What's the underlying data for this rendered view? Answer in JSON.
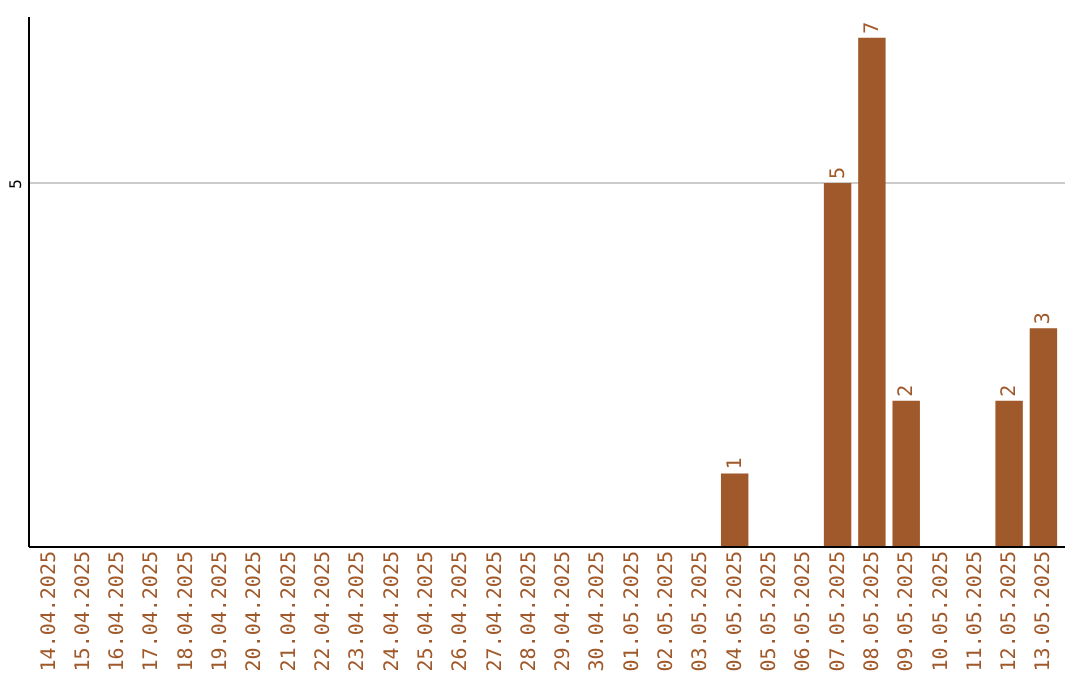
{
  "chart_data": {
    "type": "bar",
    "categories": [
      "14.04.2025",
      "15.04.2025",
      "16.04.2025",
      "17.04.2025",
      "18.04.2025",
      "19.04.2025",
      "20.04.2025",
      "21.04.2025",
      "22.04.2025",
      "23.04.2025",
      "24.04.2025",
      "25.04.2025",
      "26.04.2025",
      "27.04.2025",
      "28.04.2025",
      "29.04.2025",
      "30.04.2025",
      "01.05.2025",
      "02.05.2025",
      "03.05.2025",
      "04.05.2025",
      "05.05.2025",
      "06.05.2025",
      "07.05.2025",
      "08.05.2025",
      "09.05.2025",
      "10.05.2025",
      "11.05.2025",
      "12.05.2025",
      "13.05.2025"
    ],
    "values": [
      null,
      null,
      null,
      null,
      null,
      null,
      null,
      null,
      null,
      null,
      null,
      null,
      null,
      null,
      null,
      null,
      null,
      null,
      null,
      null,
      1,
      null,
      null,
      5,
      7,
      2,
      null,
      null,
      2,
      3
    ],
    "data_labels": true,
    "color": "#a0592a",
    "ylim": [
      0,
      7.3
    ],
    "yticks": [
      5
    ],
    "grid": "y"
  }
}
